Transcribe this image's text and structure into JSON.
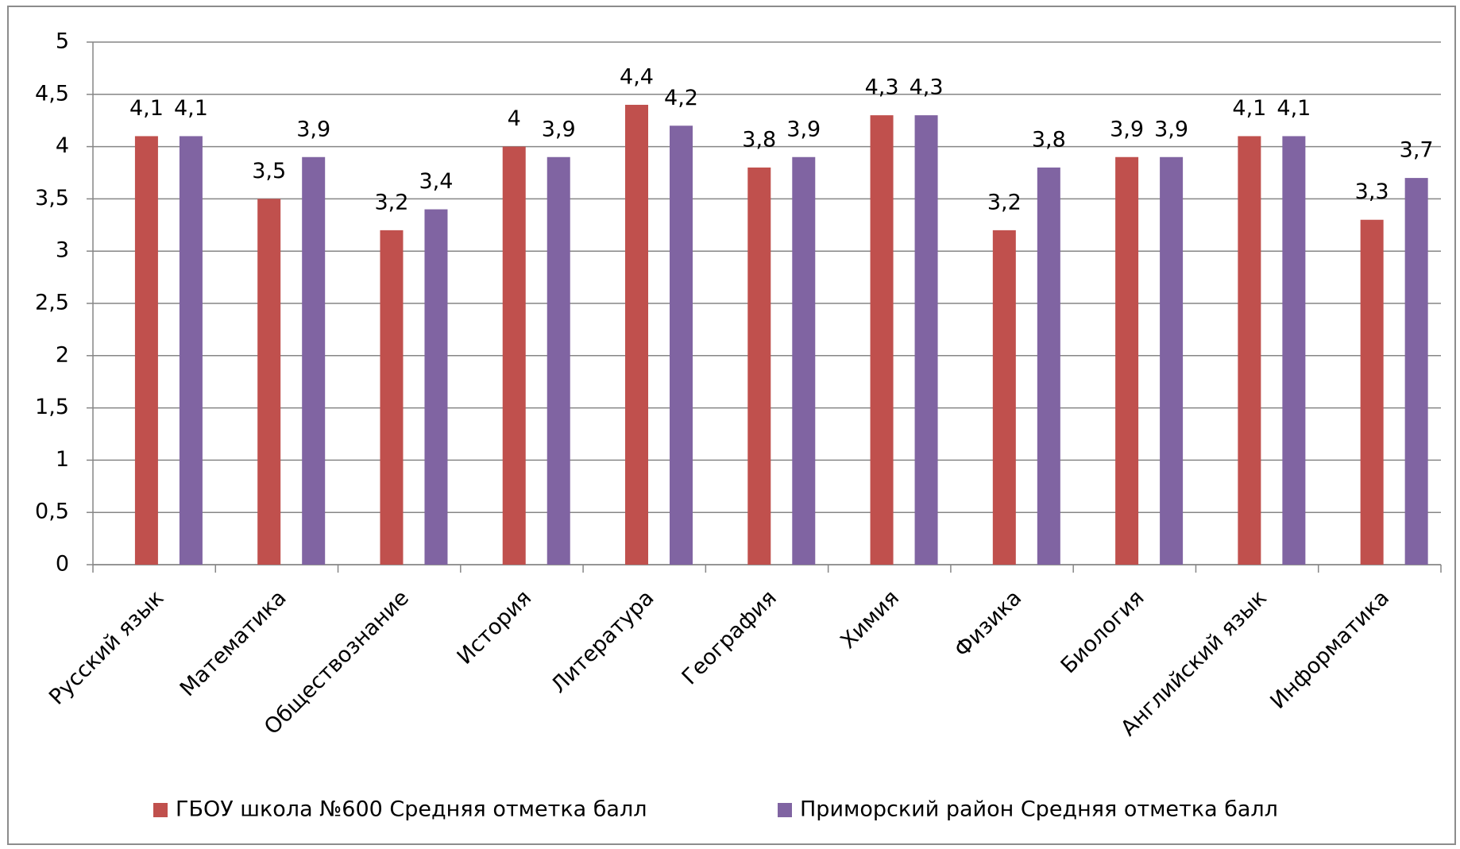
{
  "chart_data": {
    "type": "bar",
    "categories": [
      "Русский язык",
      "Математика",
      "Обществознание",
      "История",
      "Литература",
      "География",
      "Химия",
      "Физика",
      "Биология",
      "Английский язык",
      "Информатика"
    ],
    "series": [
      {
        "name": "ГБОУ школа №600 Средняя отметка балл",
        "color": "#c0504d",
        "values": [
          4.1,
          3.5,
          3.2,
          4,
          4.4,
          3.8,
          4.3,
          3.2,
          3.9,
          4.1,
          3.3
        ],
        "value_labels": [
          "4,1",
          "3,5",
          "3,2",
          "4",
          "4,4",
          "3,8",
          "4,3",
          "3,2",
          "3,9",
          "4,1",
          "3,3"
        ]
      },
      {
        "name": "Приморский район Средняя отметка балл",
        "color": "#8064a2",
        "values": [
          4.1,
          3.9,
          3.4,
          3.9,
          4.2,
          3.9,
          4.3,
          3.8,
          3.9,
          4.1,
          3.7
        ],
        "value_labels": [
          "4,1",
          "3,9",
          "3,4",
          "3,9",
          "4,2",
          "3,9",
          "4,3",
          "3,8",
          "3,9",
          "4,1",
          "3,7"
        ]
      }
    ],
    "ylim": [
      0,
      5
    ],
    "yticks": [
      0,
      {
        "value": 0.5,
        "label": "0,5"
      },
      1,
      {
        "value": 1.5,
        "label": "1,5"
      },
      2,
      {
        "value": 2.5,
        "label": "2,5"
      },
      3,
      {
        "value": 3.5,
        "label": "3,5"
      },
      4,
      {
        "value": 4.5,
        "label": "4,5"
      },
      5
    ],
    "grid": true,
    "legend": "bottom"
  }
}
